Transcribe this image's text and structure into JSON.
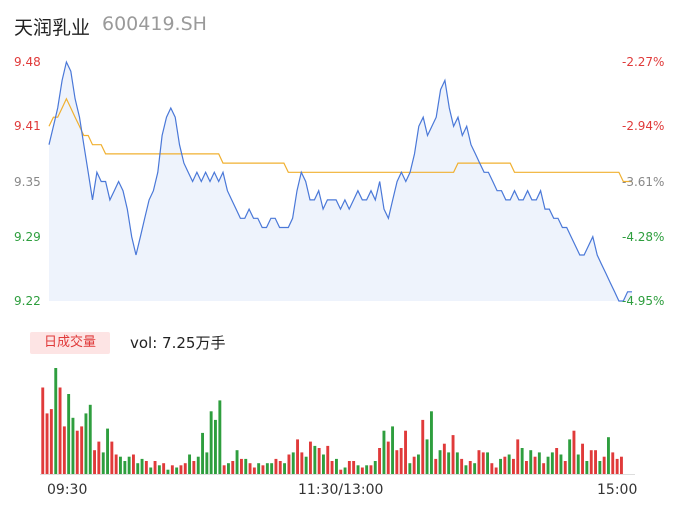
{
  "header": {
    "stock_name": "天润乳业",
    "stock_code": "600419.SH"
  },
  "volume_tab": {
    "label": "日成交量",
    "summary": "vol: 7.25万手"
  },
  "colors": {
    "up": "#e03a3a",
    "down": "#2e9e3e",
    "price_line": "#4a78d8",
    "avg_line": "#f0b030",
    "area": "#eef3fc"
  },
  "chart_data": [
    {
      "type": "line",
      "y_tick_labels": [
        {
          "value": 9.48,
          "price": "9.48",
          "pct": "-2.27%",
          "color": "#e03a3a"
        },
        {
          "value": 9.41,
          "price": "9.41",
          "pct": "-2.94%",
          "color": "#e03a3a"
        },
        {
          "value": 9.35,
          "price": "9.35",
          "pct": "-3.61%",
          "color": "#888888"
        },
        {
          "value": 9.29,
          "price": "9.29",
          "pct": "-4.28%",
          "color": "#2e9e3e"
        },
        {
          "value": 9.22,
          "price": "9.22",
          "pct": "-4.95%",
          "color": "#2e9e3e"
        }
      ],
      "ylim": [
        9.22,
        9.48
      ],
      "x_labels": [
        "09:30",
        "11:30/13:00",
        "15:00"
      ],
      "series": [
        {
          "key": "price",
          "values": [
            9.39,
            9.41,
            9.43,
            9.46,
            9.48,
            9.47,
            9.44,
            9.42,
            9.39,
            9.36,
            9.33,
            9.36,
            9.35,
            9.35,
            9.33,
            9.34,
            9.35,
            9.34,
            9.32,
            9.29,
            9.27,
            9.29,
            9.31,
            9.33,
            9.34,
            9.36,
            9.4,
            9.42,
            9.43,
            9.42,
            9.39,
            9.37,
            9.36,
            9.35,
            9.36,
            9.35,
            9.36,
            9.35,
            9.36,
            9.35,
            9.36,
            9.34,
            9.33,
            9.32,
            9.31,
            9.31,
            9.32,
            9.31,
            9.31,
            9.3,
            9.3,
            9.31,
            9.31,
            9.3,
            9.3,
            9.3,
            9.31,
            9.34,
            9.36,
            9.35,
            9.33,
            9.33,
            9.34,
            9.32,
            9.33,
            9.33,
            9.33,
            9.32,
            9.33,
            9.32,
            9.33,
            9.34,
            9.33,
            9.33,
            9.34,
            9.33,
            9.35,
            9.32,
            9.31,
            9.33,
            9.35,
            9.36,
            9.35,
            9.36,
            9.38,
            9.41,
            9.42,
            9.4,
            9.41,
            9.42,
            9.45,
            9.46,
            9.43,
            9.41,
            9.42,
            9.4,
            9.41,
            9.39,
            9.38,
            9.37,
            9.36,
            9.36,
            9.35,
            9.34,
            9.34,
            9.33,
            9.33,
            9.34,
            9.33,
            9.33,
            9.34,
            9.33,
            9.33,
            9.34,
            9.32,
            9.32,
            9.31,
            9.31,
            9.3,
            9.3,
            9.29,
            9.28,
            9.27,
            9.27,
            9.28,
            9.29,
            9.27,
            9.26,
            9.25,
            9.24,
            9.23,
            9.22,
            9.22,
            9.23,
            9.23
          ]
        },
        {
          "key": "avg",
          "values": [
            9.41,
            9.42,
            9.42,
            9.43,
            9.44,
            9.43,
            9.42,
            9.41,
            9.4,
            9.4,
            9.39,
            9.39,
            9.39,
            9.38,
            9.38,
            9.38,
            9.38,
            9.38,
            9.38,
            9.38,
            9.38,
            9.38,
            9.38,
            9.38,
            9.38,
            9.38,
            9.38,
            9.38,
            9.38,
            9.38,
            9.38,
            9.38,
            9.38,
            9.38,
            9.38,
            9.38,
            9.38,
            9.38,
            9.38,
            9.38,
            9.37,
            9.37,
            9.37,
            9.37,
            9.37,
            9.37,
            9.37,
            9.37,
            9.37,
            9.37,
            9.37,
            9.37,
            9.37,
            9.37,
            9.37,
            9.36,
            9.36,
            9.36,
            9.36,
            9.36,
            9.36,
            9.36,
            9.36,
            9.36,
            9.36,
            9.36,
            9.36,
            9.36,
            9.36,
            9.36,
            9.36,
            9.36,
            9.36,
            9.36,
            9.36,
            9.36,
            9.36,
            9.36,
            9.36,
            9.36,
            9.36,
            9.36,
            9.36,
            9.36,
            9.36,
            9.36,
            9.36,
            9.36,
            9.36,
            9.36,
            9.36,
            9.36,
            9.36,
            9.36,
            9.37,
            9.37,
            9.37,
            9.37,
            9.37,
            9.37,
            9.37,
            9.37,
            9.37,
            9.37,
            9.37,
            9.37,
            9.37,
            9.36,
            9.36,
            9.36,
            9.36,
            9.36,
            9.36,
            9.36,
            9.36,
            9.36,
            9.36,
            9.36,
            9.36,
            9.36,
            9.36,
            9.36,
            9.36,
            9.36,
            9.36,
            9.36,
            9.36,
            9.36,
            9.36,
            9.36,
            9.36,
            9.36,
            9.35,
            9.35,
            9.35
          ]
        }
      ]
    },
    {
      "type": "bar",
      "series": [
        {
          "key": "volume",
          "values": [
            40,
            28,
            30,
            49,
            40,
            22,
            37,
            26,
            20,
            22,
            28,
            32,
            11,
            15,
            10,
            21,
            15,
            9,
            8,
            6,
            8,
            9,
            5,
            7,
            6,
            3,
            6,
            4,
            5,
            2,
            4,
            3,
            4,
            5,
            9,
            6,
            8,
            19,
            10,
            29,
            25,
            34,
            4,
            5,
            6,
            11,
            7,
            7,
            5,
            3,
            5,
            4,
            5,
            5,
            7,
            6,
            5,
            9,
            10,
            16,
            10,
            8,
            15,
            13,
            12,
            9,
            13,
            6,
            7,
            2,
            3,
            6,
            6,
            4,
            3,
            4,
            4,
            6,
            12,
            20,
            15,
            22,
            11,
            12,
            20,
            5,
            8,
            9,
            25,
            16,
            29,
            7,
            11,
            14,
            10,
            18,
            10,
            7,
            4,
            6,
            5,
            11,
            10,
            10,
            5,
            3,
            7,
            8,
            9,
            7,
            16,
            12,
            6,
            11,
            8,
            10,
            5,
            8,
            10,
            12,
            9,
            6,
            16,
            20,
            9,
            14,
            6,
            11,
            11,
            6,
            8,
            17,
            10,
            7,
            8
          ]
        },
        {
          "key": "direction",
          "values": [
            1,
            1,
            1,
            0,
            1,
            1,
            0,
            0,
            1,
            1,
            0,
            0,
            1,
            1,
            0,
            0,
            1,
            1,
            0,
            0,
            0,
            1,
            0,
            0,
            1,
            0,
            1,
            0,
            1,
            0,
            1,
            0,
            1,
            1,
            0,
            1,
            0,
            0,
            0,
            0,
            0,
            0,
            1,
            0,
            1,
            0,
            1,
            0,
            1,
            1,
            0,
            1,
            0,
            0,
            1,
            1,
            0,
            1,
            0,
            1,
            1,
            0,
            1,
            0,
            1,
            0,
            1,
            1,
            0,
            1,
            0,
            1,
            1,
            0,
            1,
            0,
            1,
            0,
            1,
            0,
            1,
            0,
            1,
            1,
            1,
            0,
            1,
            0,
            1,
            0,
            0,
            1,
            0,
            1,
            0,
            1,
            0,
            1,
            0,
            1,
            0,
            1,
            1,
            0,
            1,
            1,
            0,
            1,
            0,
            1,
            1,
            0,
            1,
            0,
            1,
            0,
            1,
            0,
            0,
            1,
            0,
            1,
            0,
            1,
            0,
            1,
            0,
            1,
            1,
            0,
            1,
            0,
            1,
            1,
            1
          ]
        }
      ]
    }
  ]
}
